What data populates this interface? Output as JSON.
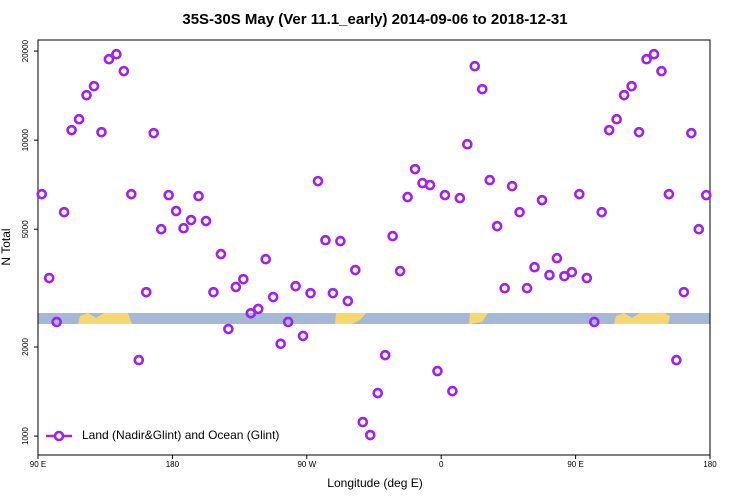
{
  "chart_data": {
    "type": "scatter",
    "title": "35S-30S May (Ver 11.1_early)   2014-09-06 to 2018-12-31",
    "x_label": "Longitude (deg E)",
    "y_label": "N Total",
    "log_y": true,
    "xlim": [
      90,
      540
    ],
    "ylim": [
      863,
      21800
    ],
    "xticks": [
      {
        "value": 90,
        "label": "90 E"
      },
      180,
      {
        "value": 270,
        "label": "90 W"
      },
      {
        "value": 360,
        "label": "0"
      },
      {
        "value": 450,
        "label": "90 E"
      },
      {
        "value": 540,
        "label": "180"
      }
    ],
    "yticks": [
      1000,
      2000,
      5000,
      10000,
      20000
    ],
    "legend_position": "bottom-left",
    "series": [
      {
        "name": "Land (Nadir&Glint) and Ocean (Glint)",
        "color": "#a020f0",
        "x": [
          92.5,
          97.5,
          102.5,
          107.5,
          112.5,
          117.5,
          122.5,
          127.5,
          132.5,
          137.5,
          142.5,
          147.5,
          152.5,
          157.5,
          162.5,
          167.5,
          172.5,
          177.5,
          182.5,
          187.5,
          192.5,
          197.5,
          202.5,
          207.5,
          212.5,
          217.5,
          222.5,
          227.5,
          232.5,
          237.5,
          242.5,
          247.5,
          252.5,
          257.5,
          262.5,
          267.5,
          272.5,
          277.5,
          282.5,
          287.5,
          292.5,
          297.5,
          302.5,
          307.5,
          312.5,
          317.5,
          322.5,
          327.5,
          332.5,
          337.5,
          342.5,
          347.5,
          352.5,
          357.5,
          362.5,
          367.5,
          372.5,
          377.5,
          382.5,
          387.5,
          392.5,
          397.5,
          402.5,
          407.5,
          412.5,
          417.5,
          422.5,
          427.5,
          432.5,
          437.5,
          442.5,
          447.5,
          452.5,
          457.5,
          462.5,
          467.5,
          472.5,
          477.5,
          482.5,
          487.5,
          492.5,
          497.5,
          502.5,
          507.5,
          512.5,
          517.5,
          522.5,
          527.5,
          532.5,
          537.5
        ],
        "values": [
          6570,
          3420,
          2430,
          5710,
          10810,
          11770,
          14190,
          15220,
          10640,
          18770,
          19520,
          17110,
          6570,
          1806,
          3064,
          10560,
          5000,
          6520,
          5760,
          5040,
          5370,
          6470,
          5330,
          3064,
          4120,
          2300,
          3190,
          3390,
          2600,
          2690,
          3960,
          2950,
          2050,
          2430,
          3210,
          2180,
          3040,
          7270,
          4590,
          3040,
          4560,
          2860,
          3640,
          1115,
          1008,
          1397,
          1877,
          4740,
          3610,
          6420,
          7980,
          7160,
          7050,
          1658,
          6520,
          1419,
          6370,
          9690,
          17780,
          14870,
          7330,
          5120,
          3160,
          6990,
          5710,
          3160,
          3720,
          6270,
          3500,
          3990,
          3470,
          3580,
          6570,
          3420,
          2430,
          5710,
          10810,
          11770,
          14190,
          15220,
          10640,
          18770,
          19520,
          17110,
          6570,
          1806,
          3064,
          10560,
          5000,
          6520
        ]
      }
    ]
  }
}
